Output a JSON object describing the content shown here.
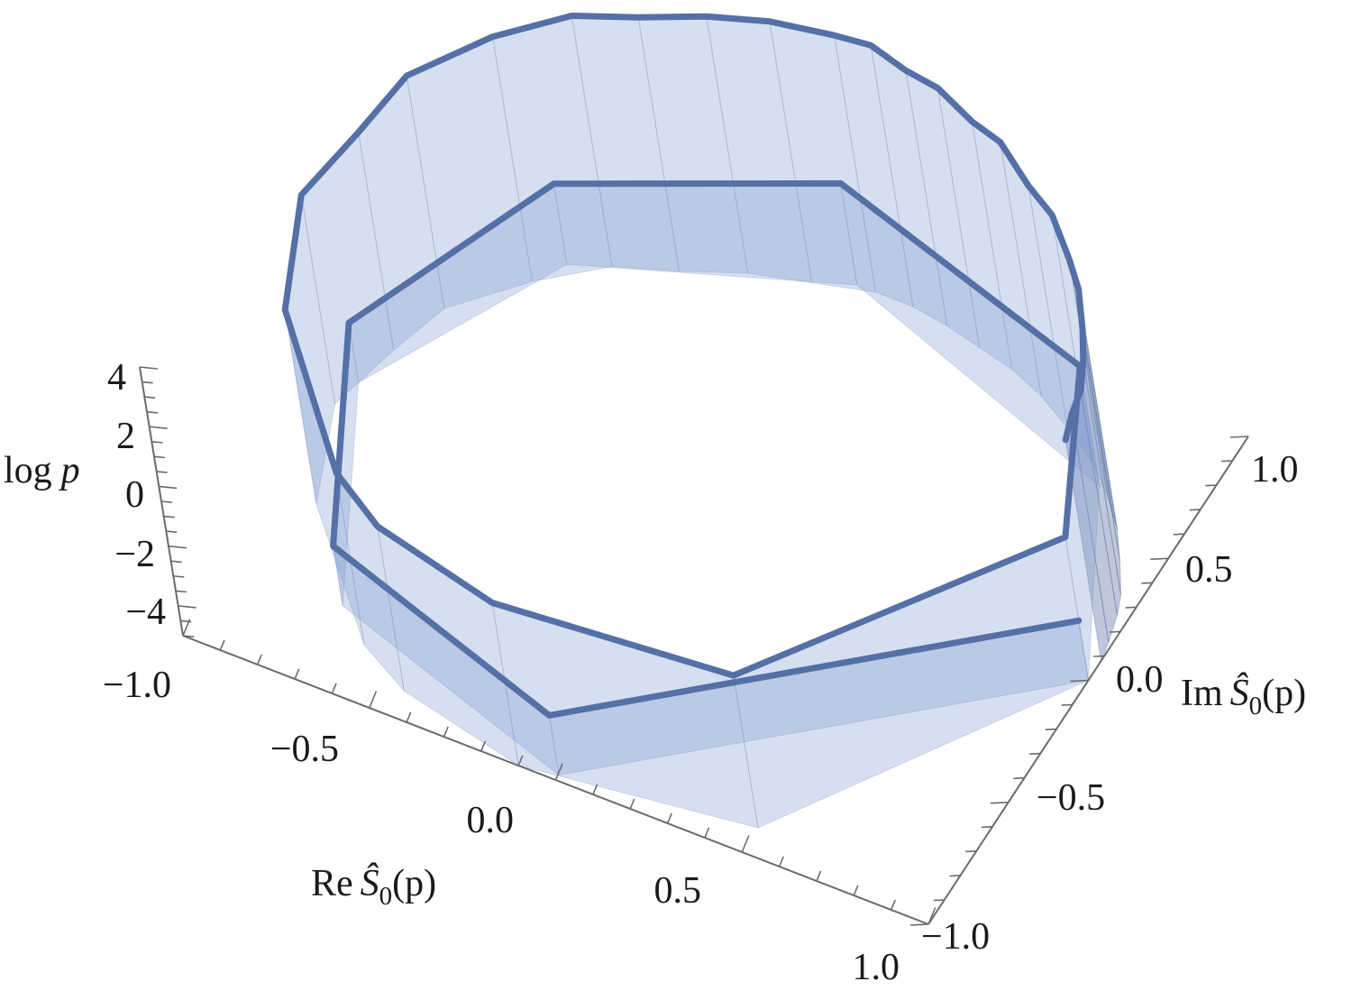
{
  "chart_data": {
    "type": "line",
    "subtype": "3d-parametric-curve-filled-to-bottom",
    "xlabel": {
      "prefix": "Re",
      "symbol": "Ŝ",
      "sub": "0",
      "arg": "(p)"
    },
    "ylabel": {
      "prefix": "Im",
      "symbol": "Ŝ",
      "sub": "0",
      "arg": "(p)"
    },
    "zlabel": {
      "prefix": "log",
      "var": "p"
    },
    "xlim": [
      -1.0,
      1.0
    ],
    "ylim": [
      -1.0,
      1.0
    ],
    "zlim": [
      -5,
      4
    ],
    "x_ticks": [
      "−1.0",
      "−0.5",
      "0.0",
      "0.5",
      "1.0"
    ],
    "y_ticks": [
      "−1.0",
      "−0.5",
      "0.0",
      "0.5",
      "1.0"
    ],
    "z_ticks": [
      "4",
      "2",
      "0",
      "−2",
      "−4"
    ],
    "grid": false,
    "colors": {
      "curve": "#5470a6",
      "fill": "#7f9cd0",
      "axis": "#6b6b6b"
    },
    "series": [
      {
        "points": [
          [
            1.0,
            0.0,
            -3.0
          ],
          [
            0.0,
            -0.98,
            -3.0
          ],
          [
            -0.7,
            -0.7,
            -3.0
          ],
          [
            -0.98,
            0.05,
            -3.0
          ],
          [
            -0.7,
            0.7,
            -2.3
          ],
          [
            -0.05,
            1.0,
            -1.6
          ],
          [
            0.75,
            0.65,
            -1.0
          ],
          [
            1.0,
            0.0,
            -0.2
          ],
          [
            0.5,
            -0.9,
            0.1
          ],
          [
            -0.1,
            -1.0,
            0.45
          ],
          [
            -0.45,
            -0.9,
            0.5
          ],
          [
            -0.6,
            -0.8,
            0.75
          ],
          [
            -0.9,
            -0.4,
            1.5
          ],
          [
            -1.0,
            -0.05,
            2.0
          ],
          [
            -0.95,
            0.2,
            2.3
          ],
          [
            -0.9,
            0.4,
            2.8
          ],
          [
            -0.75,
            0.6,
            3.2
          ],
          [
            -0.6,
            0.75,
            3.4
          ],
          [
            -0.45,
            0.82,
            3.5
          ],
          [
            -0.3,
            0.9,
            3.6
          ],
          [
            -0.15,
            0.95,
            3.75
          ],
          [
            0.0,
            1.0,
            3.6
          ],
          [
            0.1,
            1.0,
            3.75
          ],
          [
            0.2,
            0.98,
            3.55
          ],
          [
            0.3,
            0.95,
            3.7
          ],
          [
            0.4,
            0.92,
            3.3
          ],
          [
            0.5,
            0.87,
            3.5
          ],
          [
            0.6,
            0.8,
            3.1
          ],
          [
            0.7,
            0.72,
            3.25
          ],
          [
            0.78,
            0.63,
            2.9
          ],
          [
            0.85,
            0.53,
            3.05
          ],
          [
            0.9,
            0.43,
            2.75
          ],
          [
            0.95,
            0.32,
            2.85
          ],
          [
            0.97,
            0.25,
            2.55
          ],
          [
            0.99,
            0.15,
            2.65
          ],
          [
            1.0,
            0.08,
            2.4
          ]
        ]
      }
    ]
  }
}
